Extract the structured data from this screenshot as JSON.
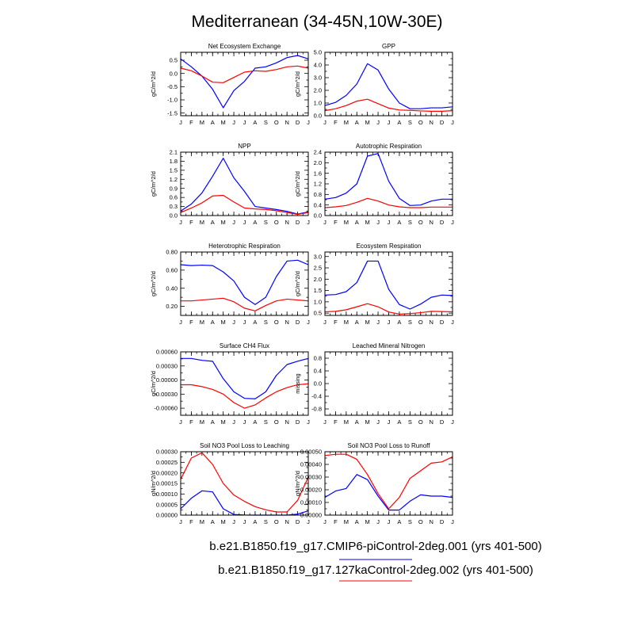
{
  "figure": {
    "title": "Mediterranean (34-45N,10W-30E)",
    "colors": {
      "run1": "#0000ff",
      "run2": "#ff0000"
    },
    "legend": [
      {
        "label": "b.e21.B1850.f19_g17.CMIP6-piControl-2deg.001 (yrs 401-500)",
        "color": "#0000ff"
      },
      {
        "label": "b.e21.B1850.f19_g17.127kaControl-2deg.002 (yrs 401-500)",
        "color": "#ff0000"
      }
    ]
  },
  "chart_data": [
    {
      "type": "line",
      "title": "Net Ecosystem Exchange",
      "ylabel": "gC/m^2/d",
      "xlabel": "",
      "categories": [
        "J",
        "F",
        "M",
        "A",
        "M",
        "J",
        "J",
        "A",
        "S",
        "O",
        "N",
        "D",
        "J"
      ],
      "ylim": [
        -1.6,
        0.8
      ],
      "yticks": [
        "0.5",
        "0.0",
        "-0.5",
        "-1.0",
        "-1.5"
      ],
      "ytick_values": [
        0.5,
        0.0,
        -0.5,
        -1.0,
        -1.5
      ],
      "series": [
        {
          "values": [
            0.55,
            0.25,
            -0.1,
            -0.6,
            -1.3,
            -0.65,
            -0.3,
            0.2,
            0.25,
            0.4,
            0.6,
            0.68,
            0.55
          ]
        },
        {
          "values": [
            0.2,
            0.1,
            -0.1,
            -0.33,
            -0.35,
            -0.15,
            0.05,
            0.1,
            0.08,
            0.15,
            0.25,
            0.28,
            0.2
          ]
        }
      ]
    },
    {
      "type": "line",
      "title": "GPP",
      "ylabel": "gC/m^2/d",
      "xlabel": "",
      "categories": [
        "J",
        "F",
        "M",
        "A",
        "M",
        "J",
        "J",
        "A",
        "S",
        "O",
        "N",
        "D",
        "J"
      ],
      "ylim": [
        0.0,
        5.0
      ],
      "yticks": [
        "5.0",
        "4.0",
        "3.0",
        "2.0",
        "1.0",
        "0.0"
      ],
      "ytick_values": [
        5.0,
        4.0,
        3.0,
        2.0,
        1.0,
        0.0
      ],
      "series": [
        {
          "values": [
            0.8,
            1.05,
            1.6,
            2.5,
            4.1,
            3.6,
            2.1,
            1.0,
            0.55,
            0.55,
            0.62,
            0.62,
            0.7
          ]
        },
        {
          "values": [
            0.4,
            0.55,
            0.8,
            1.15,
            1.3,
            0.95,
            0.6,
            0.45,
            0.42,
            0.38,
            0.35,
            0.35,
            0.4
          ]
        }
      ]
    },
    {
      "type": "line",
      "title": "NPP",
      "ylabel": "gC/m^2/d",
      "xlabel": "",
      "categories": [
        "J",
        "F",
        "M",
        "A",
        "M",
        "J",
        "J",
        "A",
        "S",
        "O",
        "N",
        "D",
        "J"
      ],
      "ylim": [
        0.0,
        2.1
      ],
      "yticks": [
        "2.1",
        "1.8",
        "1.5",
        "1.2",
        "0.9",
        "0.6",
        "0.3",
        "0.0"
      ],
      "ytick_values": [
        2.1,
        1.8,
        1.5,
        1.2,
        0.9,
        0.6,
        0.3,
        0.0
      ],
      "series": [
        {
          "values": [
            0.15,
            0.38,
            0.75,
            1.3,
            1.9,
            1.25,
            0.8,
            0.3,
            0.25,
            0.2,
            0.14,
            0.05,
            0.12
          ]
        },
        {
          "values": [
            0.1,
            0.25,
            0.42,
            0.65,
            0.67,
            0.45,
            0.25,
            0.22,
            0.2,
            0.16,
            0.1,
            0.04,
            0.1
          ]
        }
      ]
    },
    {
      "type": "line",
      "title": "Autotrophic Respiration",
      "ylabel": "gC/m^2/d",
      "xlabel": "",
      "categories": [
        "J",
        "F",
        "M",
        "A",
        "M",
        "J",
        "J",
        "A",
        "S",
        "O",
        "N",
        "D",
        "J"
      ],
      "ylim": [
        0.0,
        2.4
      ],
      "yticks": [
        "2.4",
        "2.0",
        "1.6",
        "1.2",
        "0.8",
        "0.4",
        "0.0"
      ],
      "ytick_values": [
        2.4,
        2.0,
        1.6,
        1.2,
        0.8,
        0.4,
        0.0
      ],
      "series": [
        {
          "values": [
            0.62,
            0.68,
            0.85,
            1.2,
            2.25,
            2.35,
            1.3,
            0.65,
            0.38,
            0.4,
            0.55,
            0.62,
            0.62
          ]
        },
        {
          "values": [
            0.3,
            0.33,
            0.38,
            0.5,
            0.65,
            0.55,
            0.4,
            0.33,
            0.3,
            0.3,
            0.32,
            0.32,
            0.32
          ]
        }
      ]
    },
    {
      "type": "line",
      "title": "Heterotrophic Respiration",
      "ylabel": "gC/m^2/d",
      "xlabel": "",
      "categories": [
        "J",
        "F",
        "M",
        "A",
        "M",
        "J",
        "J",
        "A",
        "S",
        "O",
        "N",
        "D",
        "J"
      ],
      "ylim": [
        0.1,
        0.8
      ],
      "yticks": [
        "0.80",
        "0.60",
        "0.40",
        "0.20"
      ],
      "ytick_values": [
        0.8,
        0.6,
        0.4,
        0.2
      ],
      "series": [
        {
          "values": [
            0.66,
            0.65,
            0.655,
            0.65,
            0.58,
            0.48,
            0.3,
            0.22,
            0.3,
            0.53,
            0.7,
            0.71,
            0.66
          ]
        },
        {
          "values": [
            0.26,
            0.26,
            0.27,
            0.28,
            0.29,
            0.25,
            0.18,
            0.15,
            0.21,
            0.26,
            0.28,
            0.27,
            0.26
          ]
        }
      ]
    },
    {
      "type": "line",
      "title": "Ecosystem Respiration",
      "ylabel": "gC/m^2/d",
      "xlabel": "",
      "categories": [
        "J",
        "F",
        "M",
        "A",
        "M",
        "J",
        "J",
        "A",
        "S",
        "O",
        "N",
        "D",
        "J"
      ],
      "ylim": [
        0.4,
        3.2
      ],
      "yticks": [
        "3.0",
        "2.5",
        "2.0",
        "1.5",
        "1.0",
        "0.5"
      ],
      "ytick_values": [
        3.0,
        2.5,
        2.0,
        1.5,
        1.0,
        0.5
      ],
      "series": [
        {
          "values": [
            1.3,
            1.32,
            1.45,
            1.85,
            2.8,
            2.8,
            1.55,
            0.88,
            0.68,
            0.9,
            1.2,
            1.3,
            1.28
          ]
        },
        {
          "values": [
            0.56,
            0.58,
            0.65,
            0.78,
            0.92,
            0.78,
            0.55,
            0.46,
            0.48,
            0.52,
            0.58,
            0.57,
            0.56
          ]
        }
      ]
    },
    {
      "type": "line",
      "title": "Surface CH4 Flux",
      "ylabel": "gC/m^2/d",
      "xlabel": "",
      "categories": [
        "J",
        "F",
        "M",
        "A",
        "M",
        "J",
        "J",
        "A",
        "S",
        "O",
        "N",
        "D",
        "J"
      ],
      "ylim": [
        -0.00075,
        0.0006
      ],
      "yticks": [
        "0.00060",
        "0.00030",
        "0.00000",
        "-0.00030",
        "-0.00060"
      ],
      "ytick_values": [
        0.0006,
        0.0003,
        0.0,
        -0.0003,
        -0.0006
      ],
      "series": [
        {
          "values": [
            0.00046,
            0.00046,
            0.00042,
            0.0004,
            3e-05,
            -0.00025,
            -0.00039,
            -0.0004,
            -0.00025,
            0.0001,
            0.00033,
            0.0004,
            0.00046
          ]
        },
        {
          "values": [
            -0.0001,
            -0.0001,
            -0.00014,
            -0.0002,
            -0.0003,
            -0.00048,
            -0.0006,
            -0.00053,
            -0.00038,
            -0.00025,
            -0.00016,
            -0.0001,
            -8e-05
          ]
        }
      ]
    },
    {
      "type": "line",
      "title": "Leached Mineral Nitrogen",
      "ylabel": "missing",
      "xlabel": "",
      "categories": [
        "J",
        "F",
        "M",
        "A",
        "M",
        "J",
        "J",
        "A",
        "S",
        "O",
        "N",
        "D",
        "J"
      ],
      "ylim": [
        -1.0,
        1.0
      ],
      "yticks": [
        "0.8",
        "0.4",
        "0.0",
        "-0.4",
        "-0.8"
      ],
      "ytick_values": [
        0.8,
        0.4,
        0.0,
        -0.4,
        -0.8
      ],
      "series": []
    },
    {
      "type": "line",
      "title": "Soil NO3 Pool Loss to Leaching",
      "ylabel": "gN/m^2/d",
      "xlabel": "",
      "categories": [
        "J",
        "F",
        "M",
        "A",
        "M",
        "J",
        "J",
        "A",
        "S",
        "O",
        "N",
        "D",
        "J"
      ],
      "ylim": [
        0.0,
        0.0003
      ],
      "yticks": [
        "0.00030",
        "0.00025",
        "0.00020",
        "0.00015",
        "0.00010",
        "0.00005",
        "0.00000"
      ],
      "ytick_values": [
        0.0003,
        0.00025,
        0.0002,
        0.00015,
        0.0001,
        5e-05,
        0.0
      ],
      "series": [
        {
          "values": [
            3e-05,
            8e-05,
            0.000115,
            0.00011,
            3e-05,
            3e-06,
            5e-07,
            0.0,
            0.0,
            0.0,
            0.0,
            5e-06,
            2e-05
          ]
        },
        {
          "values": [
            0.00017,
            0.00027,
            0.000295,
            0.00024,
            0.00015,
            9.5e-05,
            6.5e-05,
            4e-05,
            2.5e-05,
            1.5e-05,
            1.5e-05,
            7e-05,
            0.00018
          ]
        }
      ]
    },
    {
      "type": "line",
      "title": "Soil NO3 Pool Loss to Runoff",
      "ylabel": "gN/m^2/d",
      "xlabel": "",
      "categories": [
        "J",
        "F",
        "M",
        "A",
        "M",
        "J",
        "J",
        "A",
        "S",
        "O",
        "N",
        "D",
        "J"
      ],
      "ylim": [
        0.0,
        0.0005
      ],
      "yticks": [
        "0.00050",
        "0.00040",
        "0.00030",
        "0.00020",
        "0.00010",
        "0.00000"
      ],
      "ytick_values": [
        0.0005,
        0.0004,
        0.0003,
        0.0002,
        0.0001,
        0.0
      ],
      "series": [
        {
          "values": [
            0.00014,
            0.00019,
            0.00021,
            0.00032,
            0.00028,
            0.00015,
            4e-05,
            4e-05,
            0.00011,
            0.00016,
            0.00015,
            0.00015,
            0.00014
          ]
        },
        {
          "values": [
            0.00047,
            0.00048,
            0.00048,
            0.00044,
            0.00032,
            0.00017,
            5e-05,
            0.00014,
            0.00029,
            0.00035,
            0.00041,
            0.00042,
            0.00046
          ]
        }
      ]
    }
  ]
}
